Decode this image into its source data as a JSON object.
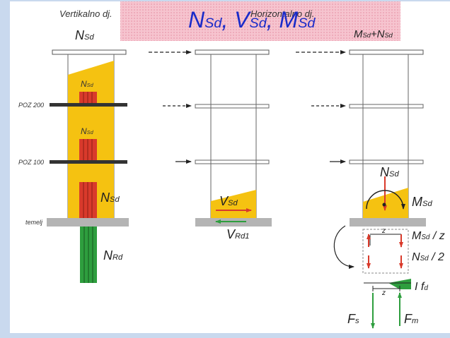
{
  "header": {
    "left_label": "Vertikalno dj.",
    "right_label": "Horizontalno dj.",
    "title_parts": [
      {
        "sym": "N",
        "sub": "Sd"
      },
      {
        "sym": "V",
        "sub": "Sd"
      },
      {
        "sym": "M",
        "sub": "Sd"
      }
    ],
    "title_separator": ","
  },
  "column1": {
    "top_label": {
      "sym": "N",
      "sub": "Sd"
    },
    "inner_labels": [
      {
        "sym": "N",
        "sub": "Sd"
      },
      {
        "sym": "N",
        "sub": "Sd"
      },
      {
        "sym": "N",
        "sub": "Sd"
      }
    ],
    "floor_labels": [
      "POZ 200",
      "POZ 100"
    ],
    "foundation_label": "temelj",
    "bottom_label": {
      "sym": "N",
      "sub": "Rd"
    }
  },
  "column2": {
    "load_label": {
      "sym": "V",
      "sub": "Sd"
    },
    "resist_label": {
      "sym": "V",
      "sub": "Rd1"
    }
  },
  "column3": {
    "top_label": {
      "sym": "M",
      "sub": "Sd",
      "suffix": "+N",
      "suffix_sub": "Sd"
    },
    "axial_label": {
      "sym": "N",
      "sub": "Sd"
    },
    "moment_label": {
      "sym": "M",
      "sub": "Sd"
    },
    "lever_label": "z",
    "couple_labels": [
      {
        "sym": "M",
        "sub": "Sd",
        "suffix": " / z"
      },
      {
        "sym": "N",
        "sub": "Sd",
        "suffix": " / 2"
      }
    ],
    "fd_label": {
      "prefix": "I ",
      "sym": "f",
      "sub": "d"
    },
    "lever_label_2": "z",
    "force_labels": [
      {
        "sym": "F",
        "sub": "s"
      },
      {
        "sym": "F",
        "sub": "m"
      }
    ]
  },
  "colors": {
    "background": "#c9d9ee",
    "banner": "#f4b8c4",
    "load": "#f5c211",
    "red": "#d93a2b",
    "green": "#2e9e3e",
    "slab": "#333333",
    "foundation": "#b4b4b4",
    "title": "#1a2bc9"
  }
}
